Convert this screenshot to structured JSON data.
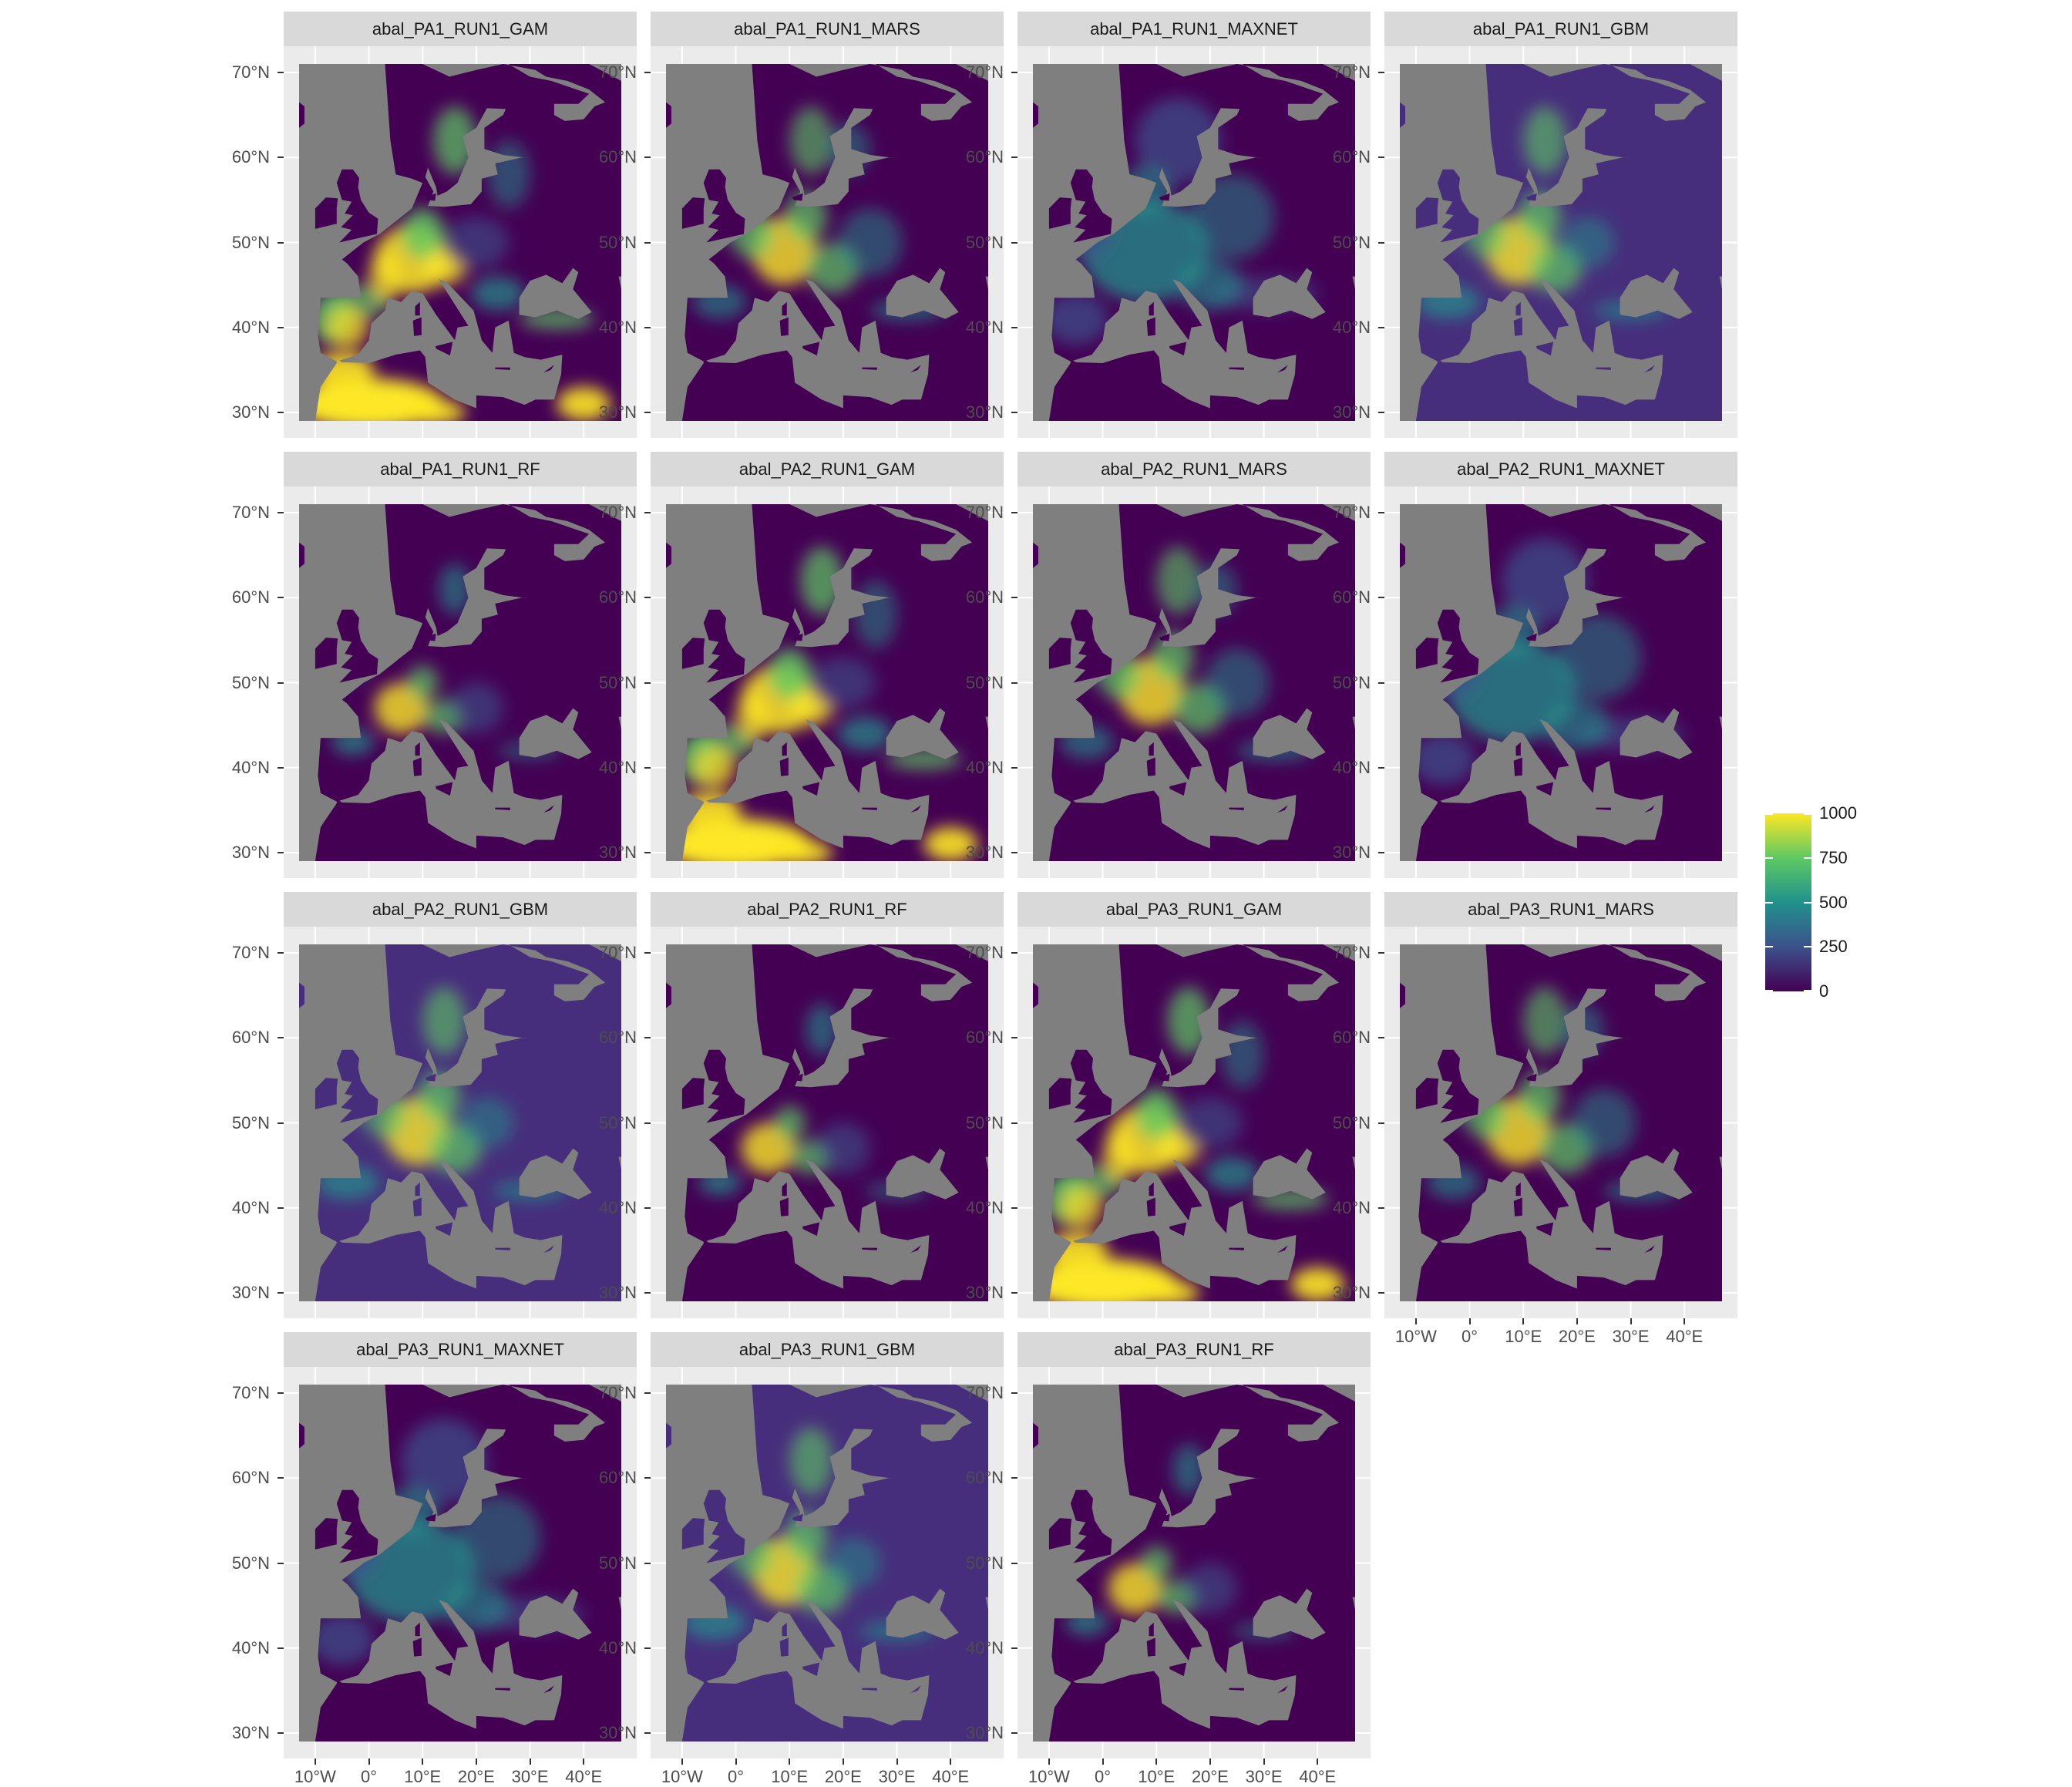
{
  "panels": [
    {
      "label": "abal_PA1_RUN1_GAM",
      "style": "gam"
    },
    {
      "label": "abal_PA1_RUN1_MARS",
      "style": "mars"
    },
    {
      "label": "abal_PA1_RUN1_MAXNET",
      "style": "maxnet"
    },
    {
      "label": "abal_PA1_RUN1_GBM",
      "style": "gbm"
    },
    {
      "label": "abal_PA1_RUN1_RF",
      "style": "rf"
    },
    {
      "label": "abal_PA2_RUN1_GAM",
      "style": "gam"
    },
    {
      "label": "abal_PA2_RUN1_MARS",
      "style": "mars"
    },
    {
      "label": "abal_PA2_RUN1_MAXNET",
      "style": "maxnet"
    },
    {
      "label": "abal_PA2_RUN1_GBM",
      "style": "gbm"
    },
    {
      "label": "abal_PA2_RUN1_RF",
      "style": "rf"
    },
    {
      "label": "abal_PA3_RUN1_GAM",
      "style": "gam"
    },
    {
      "label": "abal_PA3_RUN1_MARS",
      "style": "mars"
    },
    {
      "label": "abal_PA3_RUN1_MAXNET",
      "style": "maxnet"
    },
    {
      "label": "abal_PA3_RUN1_GBM",
      "style": "gbm"
    },
    {
      "label": "abal_PA3_RUN1_RF",
      "style": "rf"
    }
  ],
  "y_ticks": [
    "70°N",
    "60°N",
    "50°N",
    "40°N",
    "30°N"
  ],
  "x_ticks": [
    "10°W",
    "0°",
    "10°E",
    "20°E",
    "30°E",
    "40°E"
  ],
  "lat_range": [
    29,
    71
  ],
  "lon_range": [
    -13,
    47
  ],
  "legend": {
    "ticks": [
      "1000",
      "750",
      "500",
      "250",
      "0"
    ],
    "range": [
      0,
      1000
    ],
    "colors": [
      "#440154",
      "#3b528b",
      "#21918c",
      "#5ec962",
      "#fde725"
    ]
  },
  "colors": {
    "ocean": "#7f7f7f",
    "background": "#440154",
    "strip": "#d9d9d9",
    "panel_bg": "#ebebeb"
  }
}
